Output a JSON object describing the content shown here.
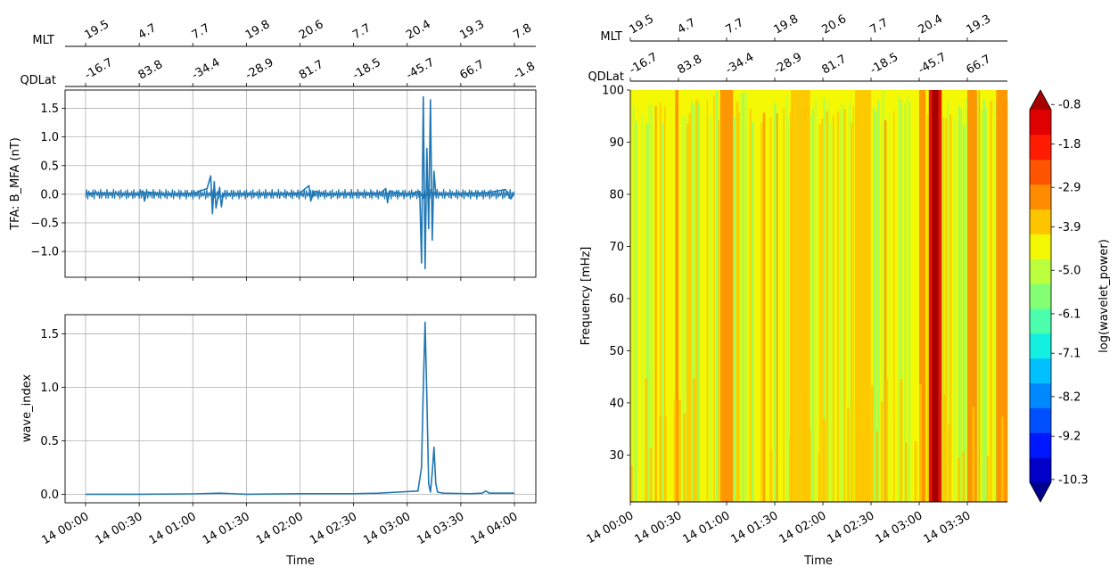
{
  "chart_data": [
    {
      "type": "line",
      "ylabel": "TFA: B_MFA (nT)",
      "ylim": [
        -1.45,
        1.82
      ],
      "yticks": [
        1.5,
        1.0,
        0.5,
        0.0,
        -0.5,
        -1.0
      ],
      "ytick_labels": [
        "1.5",
        "1.0",
        "0.5",
        "0.0",
        "−0.5",
        "−1.0"
      ],
      "xlim_minutes": [
        -5,
        245
      ],
      "grid": true,
      "color": "#1f77b4",
      "series": [
        {
          "values": [
            [
              0,
              0.02
            ],
            [
              15,
              0.01
            ],
            [
              30,
              0.0
            ],
            [
              32,
              0.06
            ],
            [
              33,
              -0.12
            ],
            [
              34,
              0.04
            ],
            [
              45,
              0.0
            ],
            [
              60,
              0.01
            ],
            [
              68,
              0.1
            ],
            [
              70,
              0.32
            ],
            [
              71,
              -0.34
            ],
            [
              72,
              0.22
            ],
            [
              73,
              -0.24
            ],
            [
              75,
              0.12
            ],
            [
              76,
              -0.22
            ],
            [
              77,
              0.0
            ],
            [
              90,
              0.01
            ],
            [
              105,
              0.0
            ],
            [
              120,
              0.02
            ],
            [
              125,
              0.15
            ],
            [
              126,
              -0.12
            ],
            [
              128,
              0.05
            ],
            [
              135,
              0.0
            ],
            [
              150,
              0.01
            ],
            [
              165,
              0.02
            ],
            [
              168,
              0.1
            ],
            [
              169,
              -0.15
            ],
            [
              170,
              0.05
            ],
            [
              180,
              0.0
            ],
            [
              187,
              0.05
            ],
            [
              188,
              -1.2
            ],
            [
              189,
              1.7
            ],
            [
              190,
              -1.3
            ],
            [
              191,
              0.8
            ],
            [
              192,
              -0.6
            ],
            [
              193,
              1.65
            ],
            [
              194,
              -0.8
            ],
            [
              195,
              0.4
            ],
            [
              196,
              0.0
            ],
            [
              210,
              0.01
            ],
            [
              225,
              0.03
            ],
            [
              235,
              0.08
            ],
            [
              238,
              -0.08
            ],
            [
              240,
              0.02
            ]
          ]
        }
      ],
      "xticks_minutes": [
        0,
        30,
        60,
        90,
        120,
        150,
        180,
        210,
        240
      ],
      "top_axes": {
        "MLT": [
          "19.5",
          "4.7",
          "7.7",
          "19.8",
          "20.6",
          "7.7",
          "20.4",
          "19.3",
          "7.8"
        ],
        "QDLat": [
          "-16.7",
          "83.8",
          "-34.4",
          "-28.9",
          "81.7",
          "-18.5",
          "-45.7",
          "66.7",
          "-1.8"
        ]
      }
    },
    {
      "type": "line",
      "ylabel": "wave_index",
      "xlabel": "Time",
      "ylim": [
        -0.08,
        1.68
      ],
      "yticks": [
        1.5,
        1.0,
        0.5,
        0.0
      ],
      "ytick_labels": [
        "1.5",
        "1.0",
        "0.5",
        "0.0"
      ],
      "xlim_minutes": [
        -5,
        245
      ],
      "grid": true,
      "color": "#1f77b4",
      "series": [
        {
          "values": [
            [
              0,
              0.0
            ],
            [
              30,
              0.0
            ],
            [
              60,
              0.003
            ],
            [
              75,
              0.01
            ],
            [
              90,
              0.0
            ],
            [
              120,
              0.005
            ],
            [
              150,
              0.005
            ],
            [
              164,
              0.01
            ],
            [
              175,
              0.02
            ],
            [
              186,
              0.03
            ],
            [
              188,
              0.25
            ],
            [
              189,
              1.0
            ],
            [
              190,
              1.61
            ],
            [
              191,
              0.9
            ],
            [
              192,
              0.1
            ],
            [
              193,
              0.02
            ],
            [
              194,
              0.2
            ],
            [
              195,
              0.44
            ],
            [
              196,
              0.1
            ],
            [
              197,
              0.02
            ],
            [
              200,
              0.01
            ],
            [
              215,
              0.005
            ],
            [
              222,
              0.01
            ],
            [
              224,
              0.03
            ],
            [
              226,
              0.01
            ],
            [
              240,
              0.01
            ]
          ]
        }
      ],
      "xticks_minutes": [
        0,
        30,
        60,
        90,
        120,
        150,
        180,
        210,
        240
      ],
      "xtick_labels": [
        "14 00:00",
        "14 00:30",
        "14 01:00",
        "14 01:30",
        "14 02:00",
        "14 02:30",
        "14 03:00",
        "14 03:30",
        "14 04:00"
      ]
    },
    {
      "type": "heatmap",
      "ylabel": "Frequency [mHz]",
      "xlabel": "Time",
      "ylim": [
        21,
        100
      ],
      "yticks": [
        100,
        90,
        80,
        70,
        60,
        50,
        40,
        30
      ],
      "xlim_minutes": [
        0,
        235
      ],
      "xticks_minutes": [
        0,
        30,
        60,
        90,
        120,
        150,
        180,
        210
      ],
      "xtick_labels": [
        "14 00:00",
        "14 00:30",
        "14 01:00",
        "14 01:30",
        "14 02:00",
        "14 02:30",
        "14 03:00",
        "14 03:30"
      ],
      "colorbar": {
        "label": "log(wavelet_power)",
        "tick_labels": [
          "-0.8",
          "-1.8",
          "-2.9",
          "-3.9",
          "-5.0",
          "-6.1",
          "-7.1",
          "-8.2",
          "-9.2",
          "-10.3"
        ],
        "tick_values": [
          -0.8,
          -1.8,
          -2.9,
          -3.9,
          -5.0,
          -6.1,
          -7.1,
          -8.2,
          -9.2,
          -10.3
        ],
        "min": -11.0,
        "max": -0.3,
        "colors": [
          "#00008f",
          "#0000c8",
          "#0018ff",
          "#0050ff",
          "#0088ff",
          "#00c0ff",
          "#14f0e0",
          "#4cffac",
          "#84ff74",
          "#bcff3c",
          "#f4f804",
          "#ffc400",
          "#ff8c00",
          "#ff5400",
          "#ff1c00",
          "#e00000",
          "#a80000"
        ]
      },
      "columns": [
        {
          "minutes": [
            0,
            30
          ],
          "level": -4.8
        },
        {
          "minutes": [
            28,
            30
          ],
          "level": -2.9
        },
        {
          "minutes": [
            56,
            64
          ],
          "level": -3.4
        },
        {
          "minutes": [
            100,
            112
          ],
          "level": -3.8
        },
        {
          "minutes": [
            140,
            150
          ],
          "level": -3.5
        },
        {
          "minutes": [
            180,
            184
          ],
          "level": -3.3
        },
        {
          "minutes": [
            186,
            194
          ],
          "level": -1.2
        },
        {
          "minutes": [
            210,
            216
          ],
          "level": -3.4
        },
        {
          "minutes": [
            228,
            235
          ],
          "level": -3.0
        }
      ],
      "top_axes": {
        "MLT": [
          "19.5",
          "4.7",
          "7.7",
          "19.8",
          "20.6",
          "7.7",
          "20.4",
          "19.3"
        ],
        "QDLat": [
          "-16.7",
          "83.8",
          "-34.4",
          "-28.9",
          "81.7",
          "-18.5",
          "-45.7",
          "66.7"
        ]
      }
    }
  ],
  "labels": {
    "mlt": "MLT",
    "qdlat": "QDLat"
  }
}
